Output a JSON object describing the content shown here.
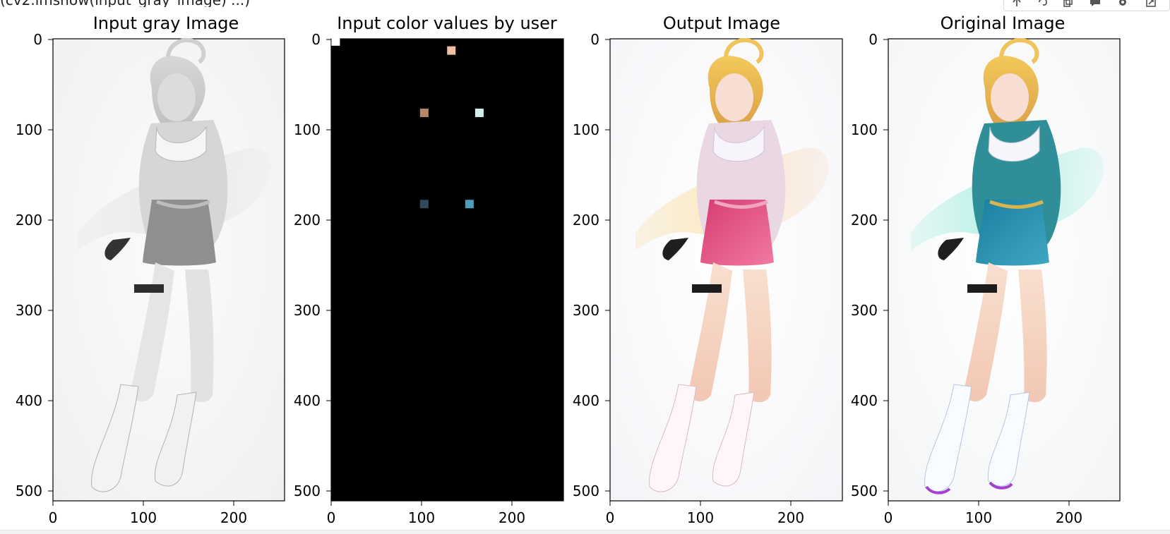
{
  "notebook": {
    "prev_cell_output_fragment": "(cv2.imshow(input_gray_image)  ...)",
    "toolbar_icons": [
      "arrow-up-icon",
      "link-icon",
      "copy-icon",
      "comment-icon",
      "gear-icon",
      "expand-icon"
    ]
  },
  "figure": {
    "panels": [
      {
        "id": "input-gray",
        "title": "Input gray Image",
        "content": "grayscale anime character illustration, pale background"
      },
      {
        "id": "input-color",
        "title": "Input color values by user",
        "content": "black canvas with six small colored hint squares"
      },
      {
        "id": "output",
        "title": "Output Image",
        "content": "colorized anime character with pink skirt, blonde hair, light background"
      },
      {
        "id": "original",
        "title": "Original Image",
        "content": "original anime character with teal outfit and gold accents"
      }
    ],
    "x_ticks": [
      "0",
      "100",
      "200"
    ],
    "y_ticks": [
      "0",
      "100",
      "200",
      "300",
      "400",
      "500"
    ],
    "colors": {
      "axis": "#000000",
      "gray_bg": "#f6f6f6",
      "output_skirt": "#d9487a",
      "original_outfit": "#2a8fa6",
      "hair": "#e8b84a",
      "skin": "#f7d7c3"
    },
    "hint_points": [
      {
        "x": 5,
        "y": 3,
        "color": "#ffffff"
      },
      {
        "x": 133,
        "y": 13,
        "color": "#f2bfa4"
      },
      {
        "x": 103,
        "y": 82,
        "color": "#b8866a"
      },
      {
        "x": 164,
        "y": 82,
        "color": "#cfeeec"
      },
      {
        "x": 103,
        "y": 183,
        "color": "#32495a"
      },
      {
        "x": 153,
        "y": 183,
        "color": "#4d9eb9"
      }
    ]
  }
}
